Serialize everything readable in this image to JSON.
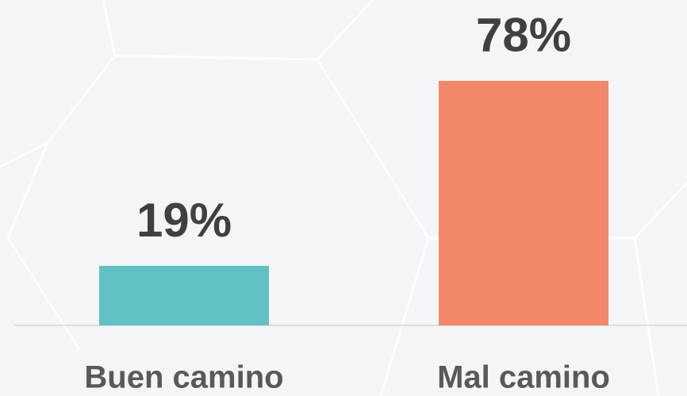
{
  "chart_data": {
    "type": "bar",
    "categories": [
      "Buen camino",
      "Mal camino"
    ],
    "values": [
      19,
      78
    ],
    "value_labels": [
      "19%",
      "78%"
    ],
    "colors": [
      "#62c1c3",
      "#f2876a"
    ]
  }
}
